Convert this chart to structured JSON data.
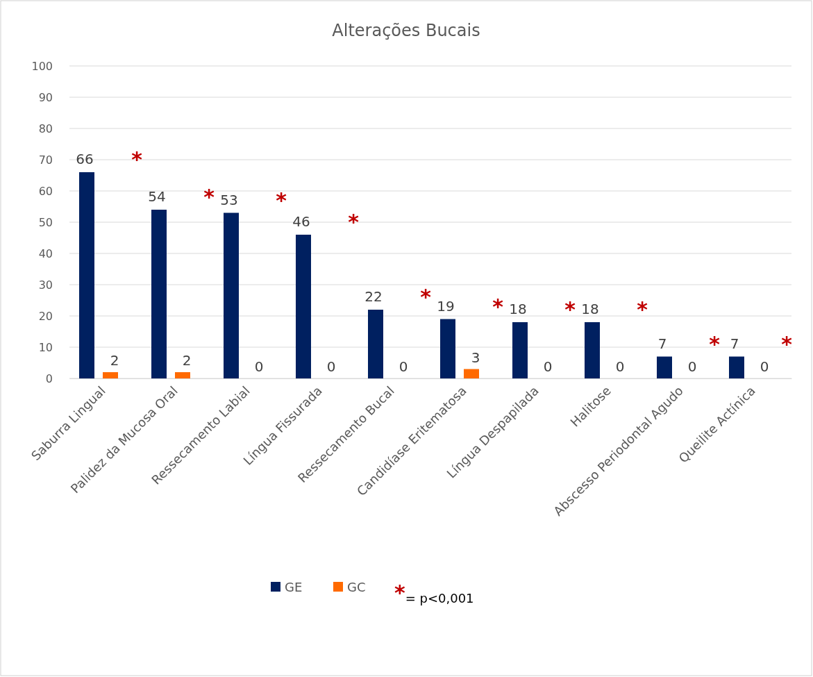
{
  "chart_data": {
    "type": "bar",
    "title": "Alterações Bucais",
    "categories": [
      "Saburra Lingual",
      "Palidez da Mucosa Oral",
      "Ressecamento Labial",
      "Língua Fissurada",
      "Ressecamento Bucal",
      "Candidíase Eritematosa",
      "Língua Despapilada",
      "Halitose",
      "Abscesso Periodontal Agudo",
      "Queilite Actínica"
    ],
    "series": [
      {
        "name": "GE",
        "color": "#002060",
        "values": [
          66,
          54,
          53,
          46,
          22,
          19,
          18,
          18,
          7,
          7
        ]
      },
      {
        "name": "GC",
        "color": "#ff6a00",
        "values": [
          2,
          2,
          0,
          0,
          0,
          3,
          0,
          0,
          0,
          0
        ]
      }
    ],
    "ylim": [
      0,
      100
    ],
    "yticks": [
      0,
      10,
      20,
      30,
      40,
      50,
      60,
      70,
      80,
      90,
      100
    ],
    "grid": "y",
    "legend": "bottom",
    "data_labels": true,
    "annotations": [
      "*",
      "*",
      "*",
      "*",
      "*",
      "*",
      "*",
      "*",
      "*",
      "*",
      "*= p<0,001"
    ]
  }
}
